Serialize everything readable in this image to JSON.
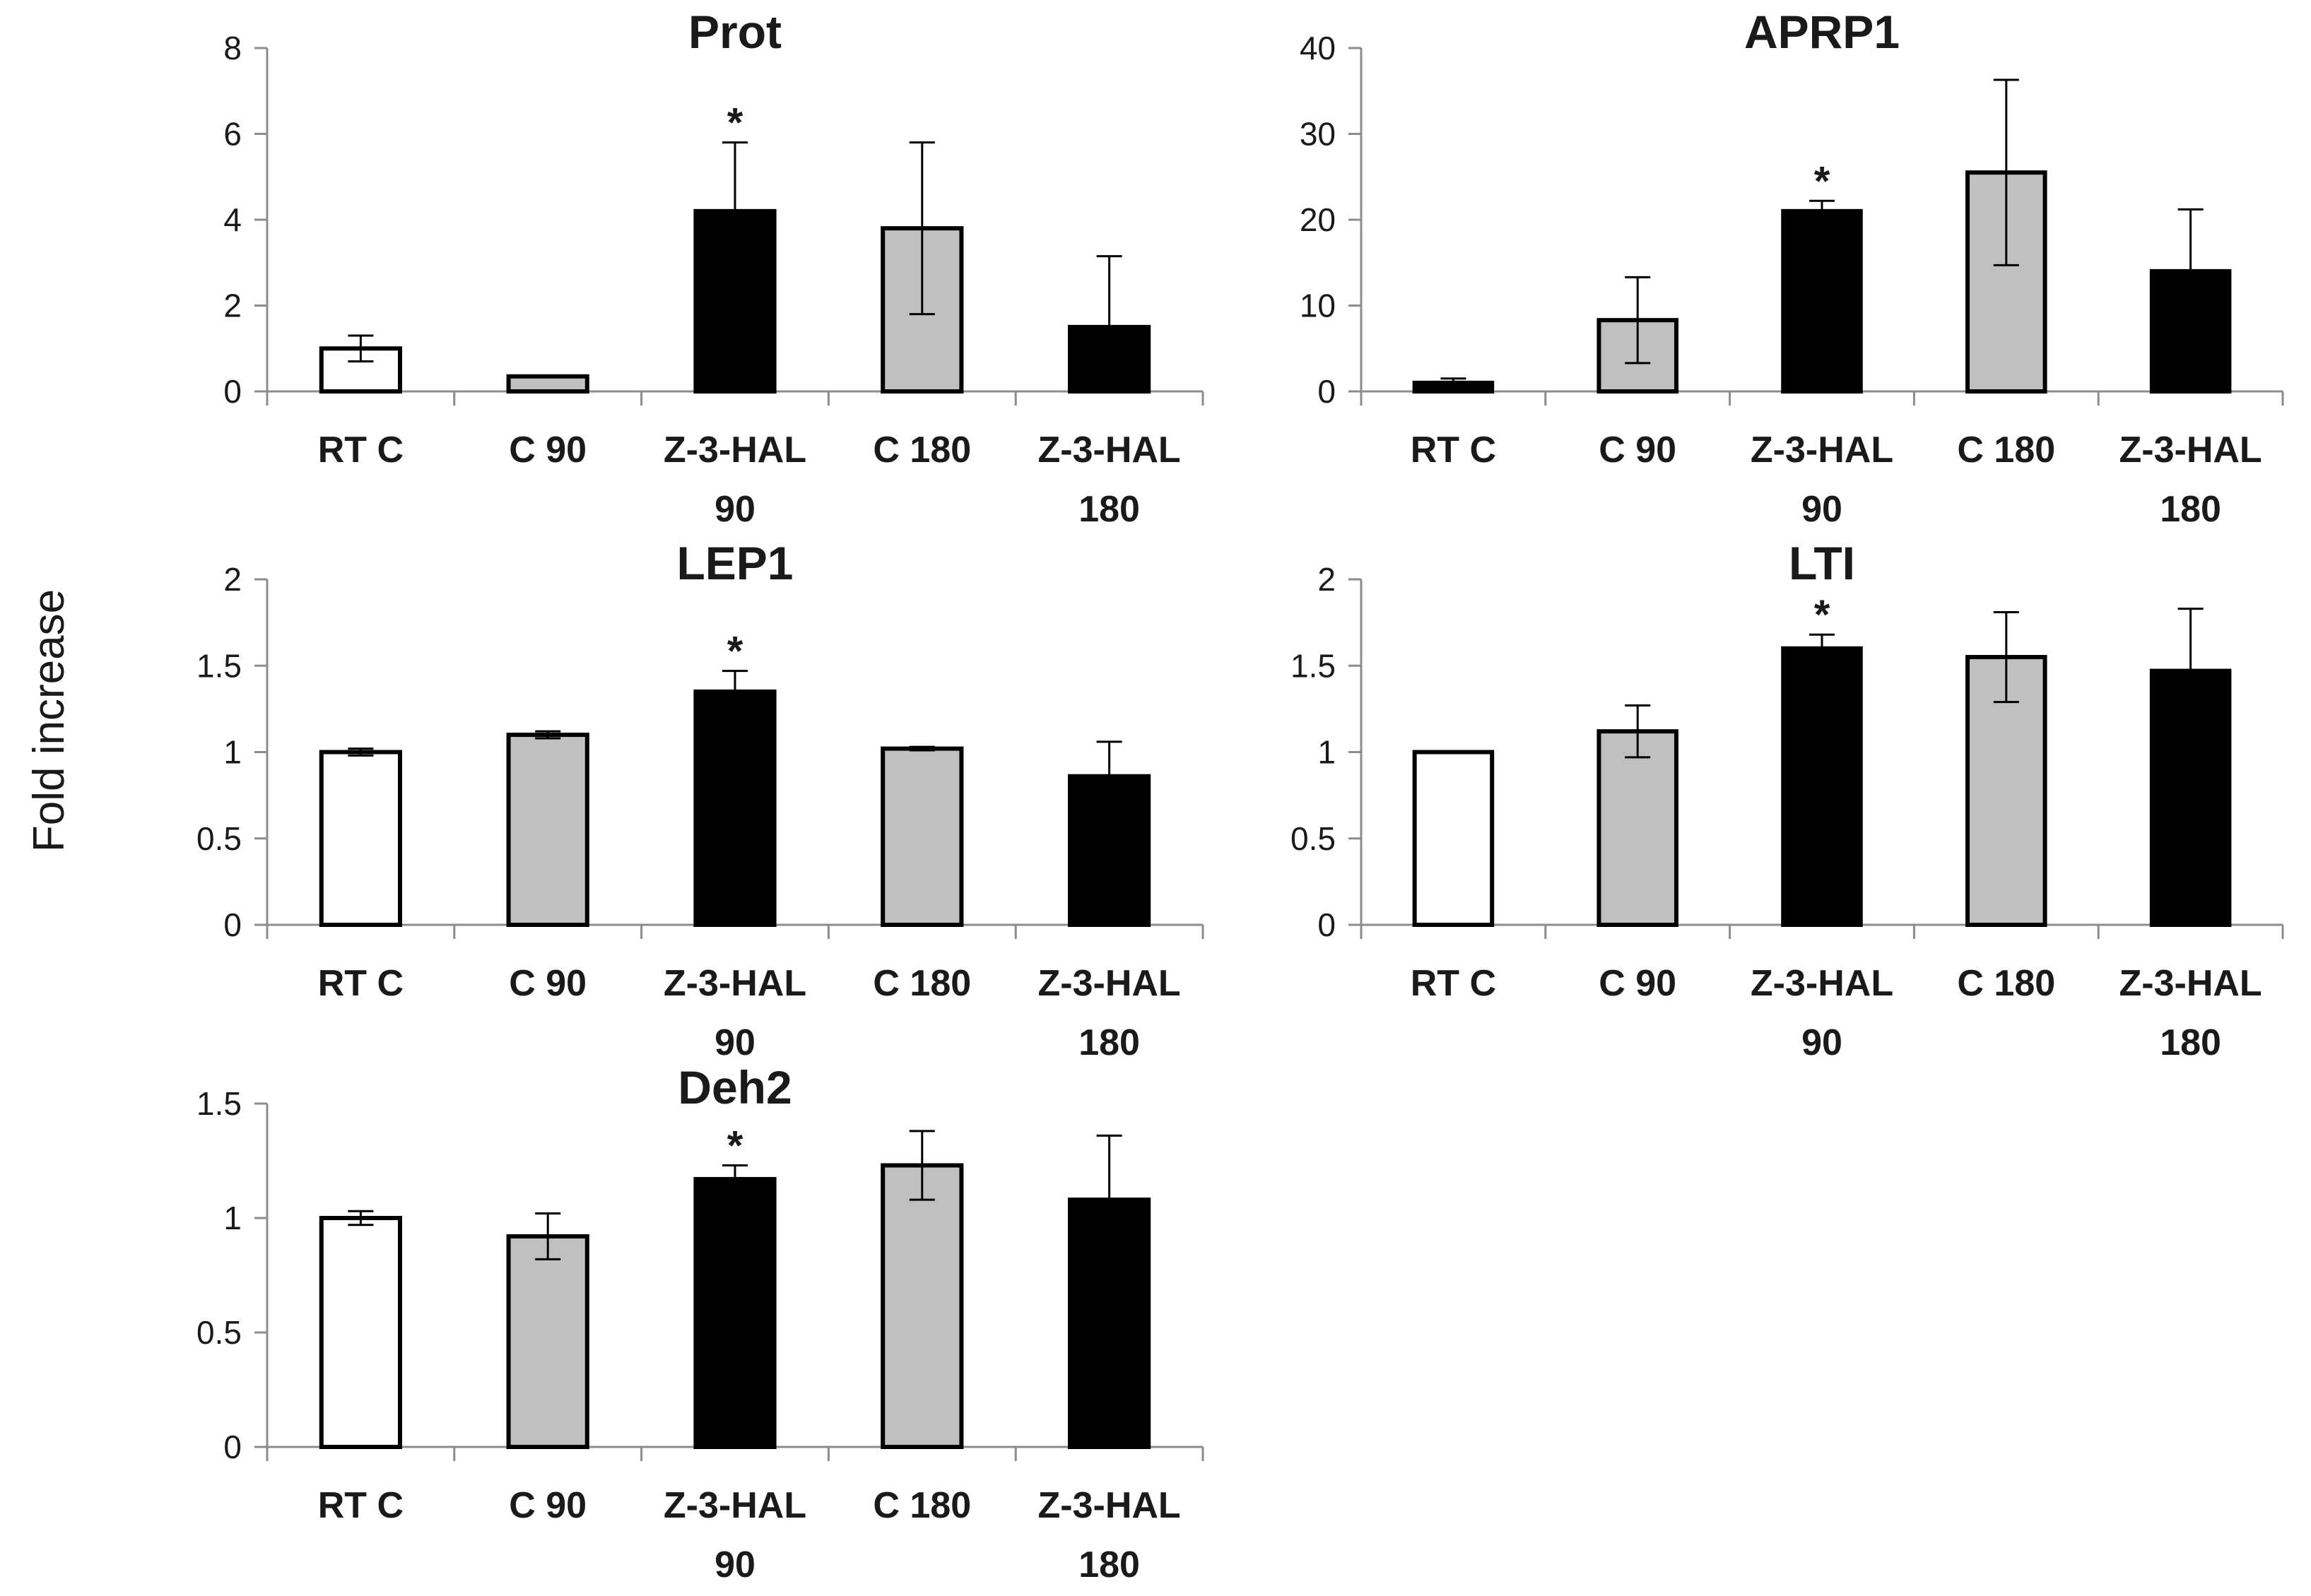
{
  "figure": {
    "ylabel": "Fold increase"
  },
  "chart_data": [
    {
      "type": "bar",
      "title": "Prot",
      "categories": [
        [
          "RT C"
        ],
        [
          "C 90"
        ],
        [
          "Z-3-HAL",
          "90"
        ],
        [
          "C 180"
        ],
        [
          "Z-3-HAL",
          "180"
        ]
      ],
      "values": [
        1.0,
        0.35,
        4.2,
        3.8,
        1.5
      ],
      "errors": [
        0.3,
        0.0,
        1.6,
        2.0,
        1.65
      ],
      "significant": [
        false,
        false,
        true,
        false,
        false
      ],
      "fills": [
        "#ffffff",
        "#c0c0c0",
        "#000000",
        "#c0c0c0",
        "#000000"
      ],
      "star_label": "*",
      "ylim": [
        0,
        8
      ],
      "yticks": [
        0,
        2,
        4,
        6,
        8
      ],
      "ytick_labels": [
        "0",
        "2",
        "4",
        "6",
        "8"
      ]
    },
    {
      "type": "bar",
      "title": "APRP1",
      "categories": [
        [
          "RT C"
        ],
        [
          "C 90"
        ],
        [
          "Z-3-HAL",
          "90"
        ],
        [
          "C 180"
        ],
        [
          "Z-3-HAL",
          "180"
        ]
      ],
      "values": [
        1.0,
        8.3,
        21.0,
        25.5,
        14.0
      ],
      "errors": [
        0.5,
        5.0,
        1.2,
        10.8,
        7.2
      ],
      "significant": [
        false,
        false,
        true,
        false,
        false
      ],
      "fills": [
        "#000000",
        "#c0c0c0",
        "#000000",
        "#c0c0c0",
        "#000000"
      ],
      "star_label": "*",
      "ylim": [
        0,
        40
      ],
      "yticks": [
        0,
        10,
        20,
        30,
        40
      ],
      "ytick_labels": [
        "0",
        "10",
        "20",
        "30",
        "40"
      ]
    },
    {
      "type": "bar",
      "title": "LEP1",
      "categories": [
        [
          "RT C"
        ],
        [
          "C 90"
        ],
        [
          "Z-3-HAL",
          "90"
        ],
        [
          "C 180"
        ],
        [
          "Z-3-HAL",
          "180"
        ]
      ],
      "values": [
        1.0,
        1.1,
        1.35,
        1.02,
        0.86
      ],
      "errors": [
        0.02,
        0.02,
        0.12,
        0.01,
        0.2
      ],
      "significant": [
        false,
        false,
        true,
        false,
        false
      ],
      "fills": [
        "#ffffff",
        "#c0c0c0",
        "#000000",
        "#c0c0c0",
        "#000000"
      ],
      "star_label": "*",
      "ylim": [
        0,
        2
      ],
      "yticks": [
        0,
        0.5,
        1,
        1.5,
        2
      ],
      "ytick_labels": [
        "0",
        "0.5",
        "1",
        "1.5",
        "2"
      ]
    },
    {
      "type": "bar",
      "title": "LTI",
      "categories": [
        [
          "RT C"
        ],
        [
          "C 90"
        ],
        [
          "Z-3-HAL",
          "90"
        ],
        [
          "C 180"
        ],
        [
          "Z-3-HAL",
          "180"
        ]
      ],
      "values": [
        1.0,
        1.12,
        1.6,
        1.55,
        1.47
      ],
      "errors": [
        0.0,
        0.15,
        0.08,
        0.26,
        0.36
      ],
      "significant": [
        false,
        false,
        true,
        false,
        false
      ],
      "fills": [
        "#ffffff",
        "#c0c0c0",
        "#000000",
        "#c0c0c0",
        "#000000"
      ],
      "star_label": "*",
      "ylim": [
        0,
        2
      ],
      "yticks": [
        0,
        0.5,
        1,
        1.5,
        2
      ],
      "ytick_labels": [
        "0",
        "0.5",
        "1",
        "1.5",
        "2"
      ]
    },
    {
      "type": "bar",
      "title": "Deh2",
      "categories": [
        [
          "RT C"
        ],
        [
          "C 90"
        ],
        [
          "Z-3-HAL",
          "90"
        ],
        [
          "C 180"
        ],
        [
          "Z-3-HAL",
          "180"
        ]
      ],
      "values": [
        1.0,
        0.92,
        1.17,
        1.23,
        1.08
      ],
      "errors": [
        0.03,
        0.1,
        0.06,
        0.15,
        0.28
      ],
      "significant": [
        false,
        false,
        true,
        false,
        false
      ],
      "fills": [
        "#ffffff",
        "#c0c0c0",
        "#000000",
        "#c0c0c0",
        "#000000"
      ],
      "star_label": "*",
      "ylim": [
        0,
        1.5
      ],
      "yticks": [
        0,
        0.5,
        1,
        1.5
      ],
      "ytick_labels": [
        "0",
        "0.5",
        "1",
        "1.5"
      ]
    }
  ]
}
